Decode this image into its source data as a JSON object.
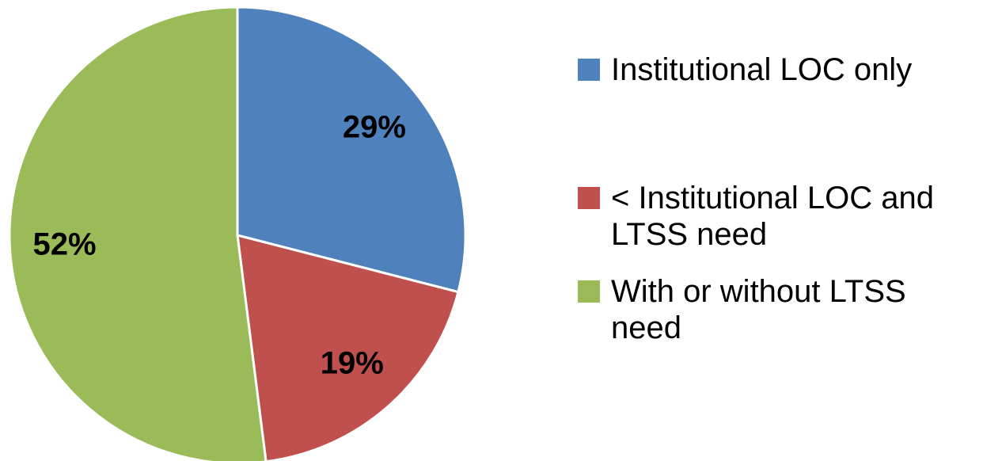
{
  "chart_data": {
    "type": "pie",
    "categories": [
      "Institutional LOC only",
      "< Institutional LOC and LTSS need",
      "With or without LTSS need"
    ],
    "values": [
      29,
      19,
      52
    ],
    "value_labels": [
      "29%",
      "19%",
      "52%"
    ],
    "colors": [
      "#4f81bd",
      "#c0504d",
      "#9bbb59"
    ],
    "legend": "right"
  }
}
